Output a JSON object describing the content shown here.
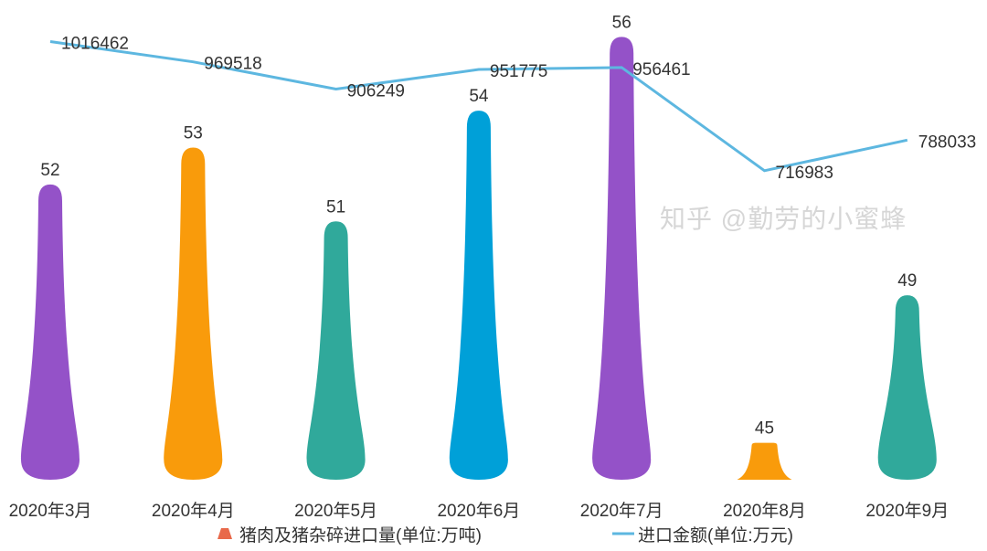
{
  "chart_data": {
    "type": "bar",
    "categories": [
      "2020年3月",
      "2020年4月",
      "2020年5月",
      "2020年6月",
      "2020年7月",
      "2020年8月",
      "2020年9月"
    ],
    "series": [
      {
        "name": "猪肉及猪杂碎进口量(单位:万吨)",
        "type": "bar",
        "values": [
          52,
          53,
          51,
          54,
          56,
          45,
          49
        ],
        "axis_range": [
          44,
          57
        ],
        "colors": [
          "#9452c8",
          "#f99b0b",
          "#30a99b",
          "#00a0d8",
          "#9452c8",
          "#f99b0b",
          "#30a99b"
        ],
        "legend_color": "#e8694a"
      },
      {
        "name": "进口金额(单位:万元)",
        "type": "line",
        "values": [
          1016462,
          969518,
          906249,
          951775,
          956461,
          716983,
          788033
        ],
        "axis_range": [
          0,
          1113000
        ],
        "color": "#5db7e0"
      }
    ],
    "title": "",
    "xlabel": "",
    "ylabel": "",
    "grid": false,
    "legend_placement": "bottom"
  },
  "watermark": "知乎 @勤劳的小蜜蜂"
}
